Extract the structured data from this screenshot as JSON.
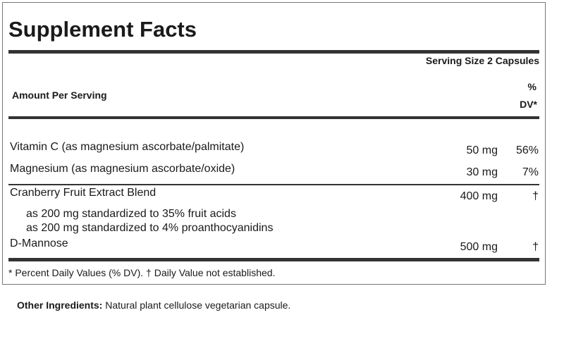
{
  "header": {
    "title": "Supplement Facts",
    "serving_size": "Serving Size 2 Capsules",
    "amount_per_serving": "Amount Per Serving",
    "dv_heading": [
      "%",
      "DV*"
    ]
  },
  "table": {
    "rows": [
      {
        "name": "Vitamin C (as magnesium ascorbate/palmitate)",
        "amount": "50 mg",
        "dv": "56%"
      },
      {
        "name": "Magnesium (as magnesium ascorbate/oxide)",
        "amount": "30 mg",
        "dv": "7%"
      },
      {
        "name": "Cranberry Fruit Extract Blend",
        "amount": "400 mg",
        "dv": "†",
        "details": [
          "as 200 mg standardized to 35% fruit acids",
          "as 200 mg standardized to 4% proanthocyanidins"
        ]
      },
      {
        "name": "D-Mannose",
        "amount": "500 mg",
        "dv": "†"
      }
    ]
  },
  "footnote": "* Percent Daily Values (% DV). † Daily Value not established.",
  "other_ingredients": {
    "label": "Other Ingredients:",
    "text": "Natural plant cellulose vegetarian capsule."
  }
}
